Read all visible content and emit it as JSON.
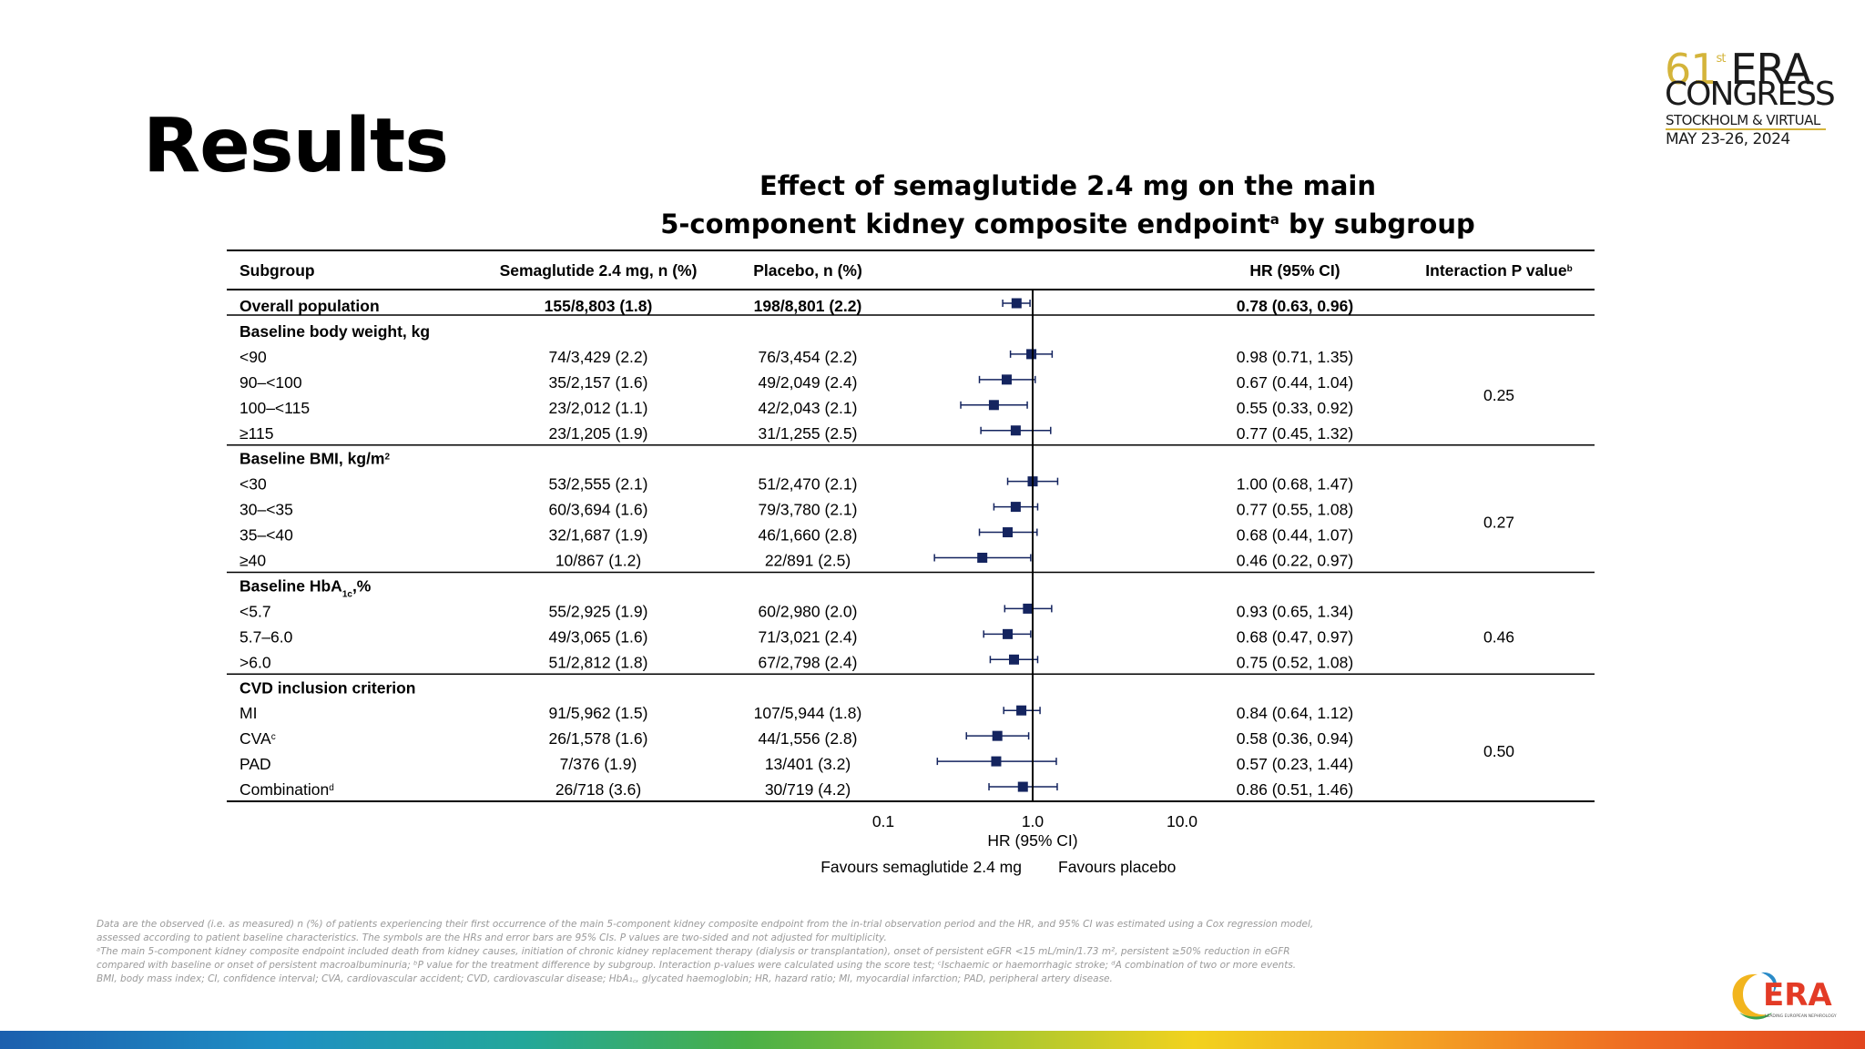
{
  "slide": {
    "title": "Results",
    "chart_title_line1": "Effect of semaglutide 2.4 mg on the main",
    "chart_title_line2": "5-component kidney composite endpoint",
    "chart_title_sup": "a",
    "chart_title_tail": " by subgroup"
  },
  "logo": {
    "num": "61",
    "st": "st",
    "era": "ERA",
    "congress": "CONGRESS",
    "location": "STOCKHOLM & VIRTUAL",
    "dates": "MAY 23-26, 2024",
    "brand": "ERA",
    "brand_sub": "LEADING EUROPEAN NEPHROLOGY"
  },
  "table": {
    "headers": {
      "subgroup": "Subgroup",
      "sema": "Semaglutide 2.4 mg, n (%)",
      "placebo": "Placebo, n (%)",
      "hr": "HR (95% CI)",
      "interaction": "Interaction P value",
      "interaction_sup": "b"
    }
  },
  "chart_data": {
    "type": "forest",
    "x_axis": {
      "scale": "log",
      "ticks": [
        "0.1",
        "1.0",
        "10.0"
      ],
      "tick_values": [
        0.1,
        1.0,
        10.0
      ],
      "label": "HR (95% CI)",
      "xlim": [
        0.1,
        10.0
      ],
      "reference_line": 1.0
    },
    "favours_left": "Favours semaglutide 2.4 mg",
    "favours_right": "Favours placebo",
    "rows": [
      {
        "type": "overall",
        "label": "Overall population",
        "sema": "155/8,803 (1.8)",
        "placebo": "198/8,801 (2.2)",
        "hr_text": "0.78 (0.63, 0.96)",
        "hr": 0.78,
        "lo": 0.63,
        "hi": 0.96
      },
      {
        "type": "header",
        "label": "Baseline body weight, kg"
      },
      {
        "type": "row",
        "label": "<90",
        "sema": "74/3,429 (2.2)",
        "placebo": "76/3,454 (2.2)",
        "hr_text": "0.98 (0.71, 1.35)",
        "hr": 0.98,
        "lo": 0.71,
        "hi": 1.35
      },
      {
        "type": "row",
        "label": "90–<100",
        "sema": "35/2,157 (1.6)",
        "placebo": "49/2,049 (2.4)",
        "hr_text": "0.67 (0.44, 1.04)",
        "hr": 0.67,
        "lo": 0.44,
        "hi": 1.04
      },
      {
        "type": "row",
        "label": "100–<115",
        "sema": "23/2,012 (1.1)",
        "placebo": "42/2,043 (2.1)",
        "hr_text": "0.55 (0.33, 0.92)",
        "hr": 0.55,
        "lo": 0.33,
        "hi": 0.92
      },
      {
        "type": "row",
        "label": "≥115",
        "sema": "23/1,205 (1.9)",
        "placebo": "31/1,255 (2.5)",
        "hr_text": "0.77 (0.45, 1.32)",
        "hr": 0.77,
        "lo": 0.45,
        "hi": 1.32
      },
      {
        "type": "header",
        "label": "Baseline BMI, kg/m",
        "label_sup": "2"
      },
      {
        "type": "row",
        "label": "<30",
        "sema": "53/2,555 (2.1)",
        "placebo": "51/2,470 (2.1)",
        "hr_text": "1.00 (0.68, 1.47)",
        "hr": 1.0,
        "lo": 0.68,
        "hi": 1.47
      },
      {
        "type": "row",
        "label": "30–<35",
        "sema": "60/3,694 (1.6)",
        "placebo": "79/3,780 (2.1)",
        "hr_text": "0.77 (0.55, 1.08)",
        "hr": 0.77,
        "lo": 0.55,
        "hi": 1.08
      },
      {
        "type": "row",
        "label": "35–<40",
        "sema": "32/1,687 (1.9)",
        "placebo": "46/1,660 (2.8)",
        "hr_text": "0.68 (0.44, 1.07)",
        "hr": 0.68,
        "lo": 0.44,
        "hi": 1.07
      },
      {
        "type": "row",
        "label": "≥40",
        "sema": "10/867 (1.2)",
        "placebo": "22/891 (2.5)",
        "hr_text": "0.46 (0.22, 0.97)",
        "hr": 0.46,
        "lo": 0.22,
        "hi": 0.97
      },
      {
        "type": "header",
        "label": "Baseline HbA",
        "label_sub": "1c",
        "label_tail": ",%"
      },
      {
        "type": "row",
        "label": "<5.7",
        "sema": "55/2,925 (1.9)",
        "placebo": "60/2,980 (2.0)",
        "hr_text": "0.93 (0.65, 1.34)",
        "hr": 0.93,
        "lo": 0.65,
        "hi": 1.34
      },
      {
        "type": "row",
        "label": "5.7–6.0",
        "sema": "49/3,065 (1.6)",
        "placebo": "71/3,021 (2.4)",
        "hr_text": "0.68 (0.47, 0.97)",
        "hr": 0.68,
        "lo": 0.47,
        "hi": 0.97
      },
      {
        "type": "row",
        "label": ">6.0",
        "sema": "51/2,812 (1.8)",
        "placebo": "67/2,798 (2.4)",
        "hr_text": "0.75 (0.52, 1.08)",
        "hr": 0.75,
        "lo": 0.52,
        "hi": 1.08
      },
      {
        "type": "header",
        "label": "CVD inclusion criterion"
      },
      {
        "type": "row",
        "label": "MI",
        "sema": "91/5,962 (1.5)",
        "placebo": "107/5,944 (1.8)",
        "hr_text": "0.84 (0.64, 1.12)",
        "hr": 0.84,
        "lo": 0.64,
        "hi": 1.12
      },
      {
        "type": "row",
        "label": "CVA",
        "label_sup": "c",
        "sema": "26/1,578 (1.6)",
        "placebo": "44/1,556 (2.8)",
        "hr_text": "0.58 (0.36, 0.94)",
        "hr": 0.58,
        "lo": 0.36,
        "hi": 0.94
      },
      {
        "type": "row",
        "label": "PAD",
        "sema": "7/376 (1.9)",
        "placebo": "13/401 (3.2)",
        "hr_text": "0.57 (0.23, 1.44)",
        "hr": 0.57,
        "lo": 0.23,
        "hi": 1.44
      },
      {
        "type": "row",
        "label": "Combination",
        "label_sup": "d",
        "sema": "26/718 (3.6)",
        "placebo": "30/719 (4.2)",
        "hr_text": "0.86 (0.51, 1.46)",
        "hr": 0.86,
        "lo": 0.51,
        "hi": 1.46
      }
    ],
    "interaction_p": [
      {
        "group": "Baseline body weight, kg",
        "value": "0.25"
      },
      {
        "group": "Baseline BMI, kg/m2",
        "value": "0.27"
      },
      {
        "group": "Baseline HbA1c,%",
        "value": "0.46"
      },
      {
        "group": "CVD inclusion criterion",
        "value": "0.50"
      }
    ],
    "colors": {
      "marker": "#14245f",
      "line": "#000000"
    }
  },
  "footnotes": {
    "line1": "Data are the observed (i.e. as measured) n (%) of patients experiencing their first occurrence of the main 5-component kidney composite endpoint from the in-trial observation period and the HR, and 95% CI was estimated using a Cox regression model, assessed according to patient baseline characteristics. The symbols are the HRs and error bars are 95% CIs. P values are two-sided and not adjusted for multiplicity.",
    "line2": "ᵃThe main 5-component kidney composite endpoint included death from kidney causes, initiation of chronic kidney replacement therapy (dialysis or transplantation), onset of persistent eGFR <15 mL/min/1.73 m², persistent ≥50% reduction in eGFR compared with baseline or onset of persistent macroalbuminuria; ᵇP value for the treatment difference by subgroup. Interaction p-values were calculated using the score test; ᶜIschaemic or haemorrhagic stroke; ᵈA combination of two or more events.",
    "line3": "BMI, body mass index; CI, confidence interval; CVA, cardiovascular accident; CVD, cardiovascular disease; HbA₁꜀, glycated haemoglobin; HR, hazard ratio; MI, myocardial infarction; PAD, peripheral artery disease."
  }
}
